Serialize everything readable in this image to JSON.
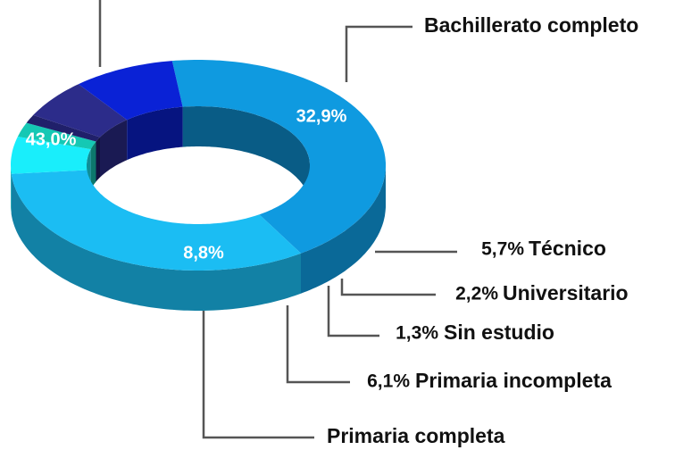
{
  "chart_data": {
    "type": "pie",
    "donut": true,
    "categories": [
      null,
      "Bachillerato completo",
      "Técnico",
      "Universitario",
      "Sin estudio",
      "Primaria incompleta",
      "Primaria completa"
    ],
    "values": [
      43.0,
      32.9,
      5.7,
      2.2,
      1.3,
      6.1,
      8.8
    ],
    "value_labels": [
      "43,0%",
      "32,9%",
      "5,7%",
      "2,2%",
      "1,3%",
      "6,1%",
      "8,8%"
    ],
    "colors": [
      "#0f9ae0",
      "#1bbdf3",
      "#19eefb",
      "#15c8b4",
      "#20206a",
      "#2c2c8a",
      "#0a22d6"
    ]
  }
}
